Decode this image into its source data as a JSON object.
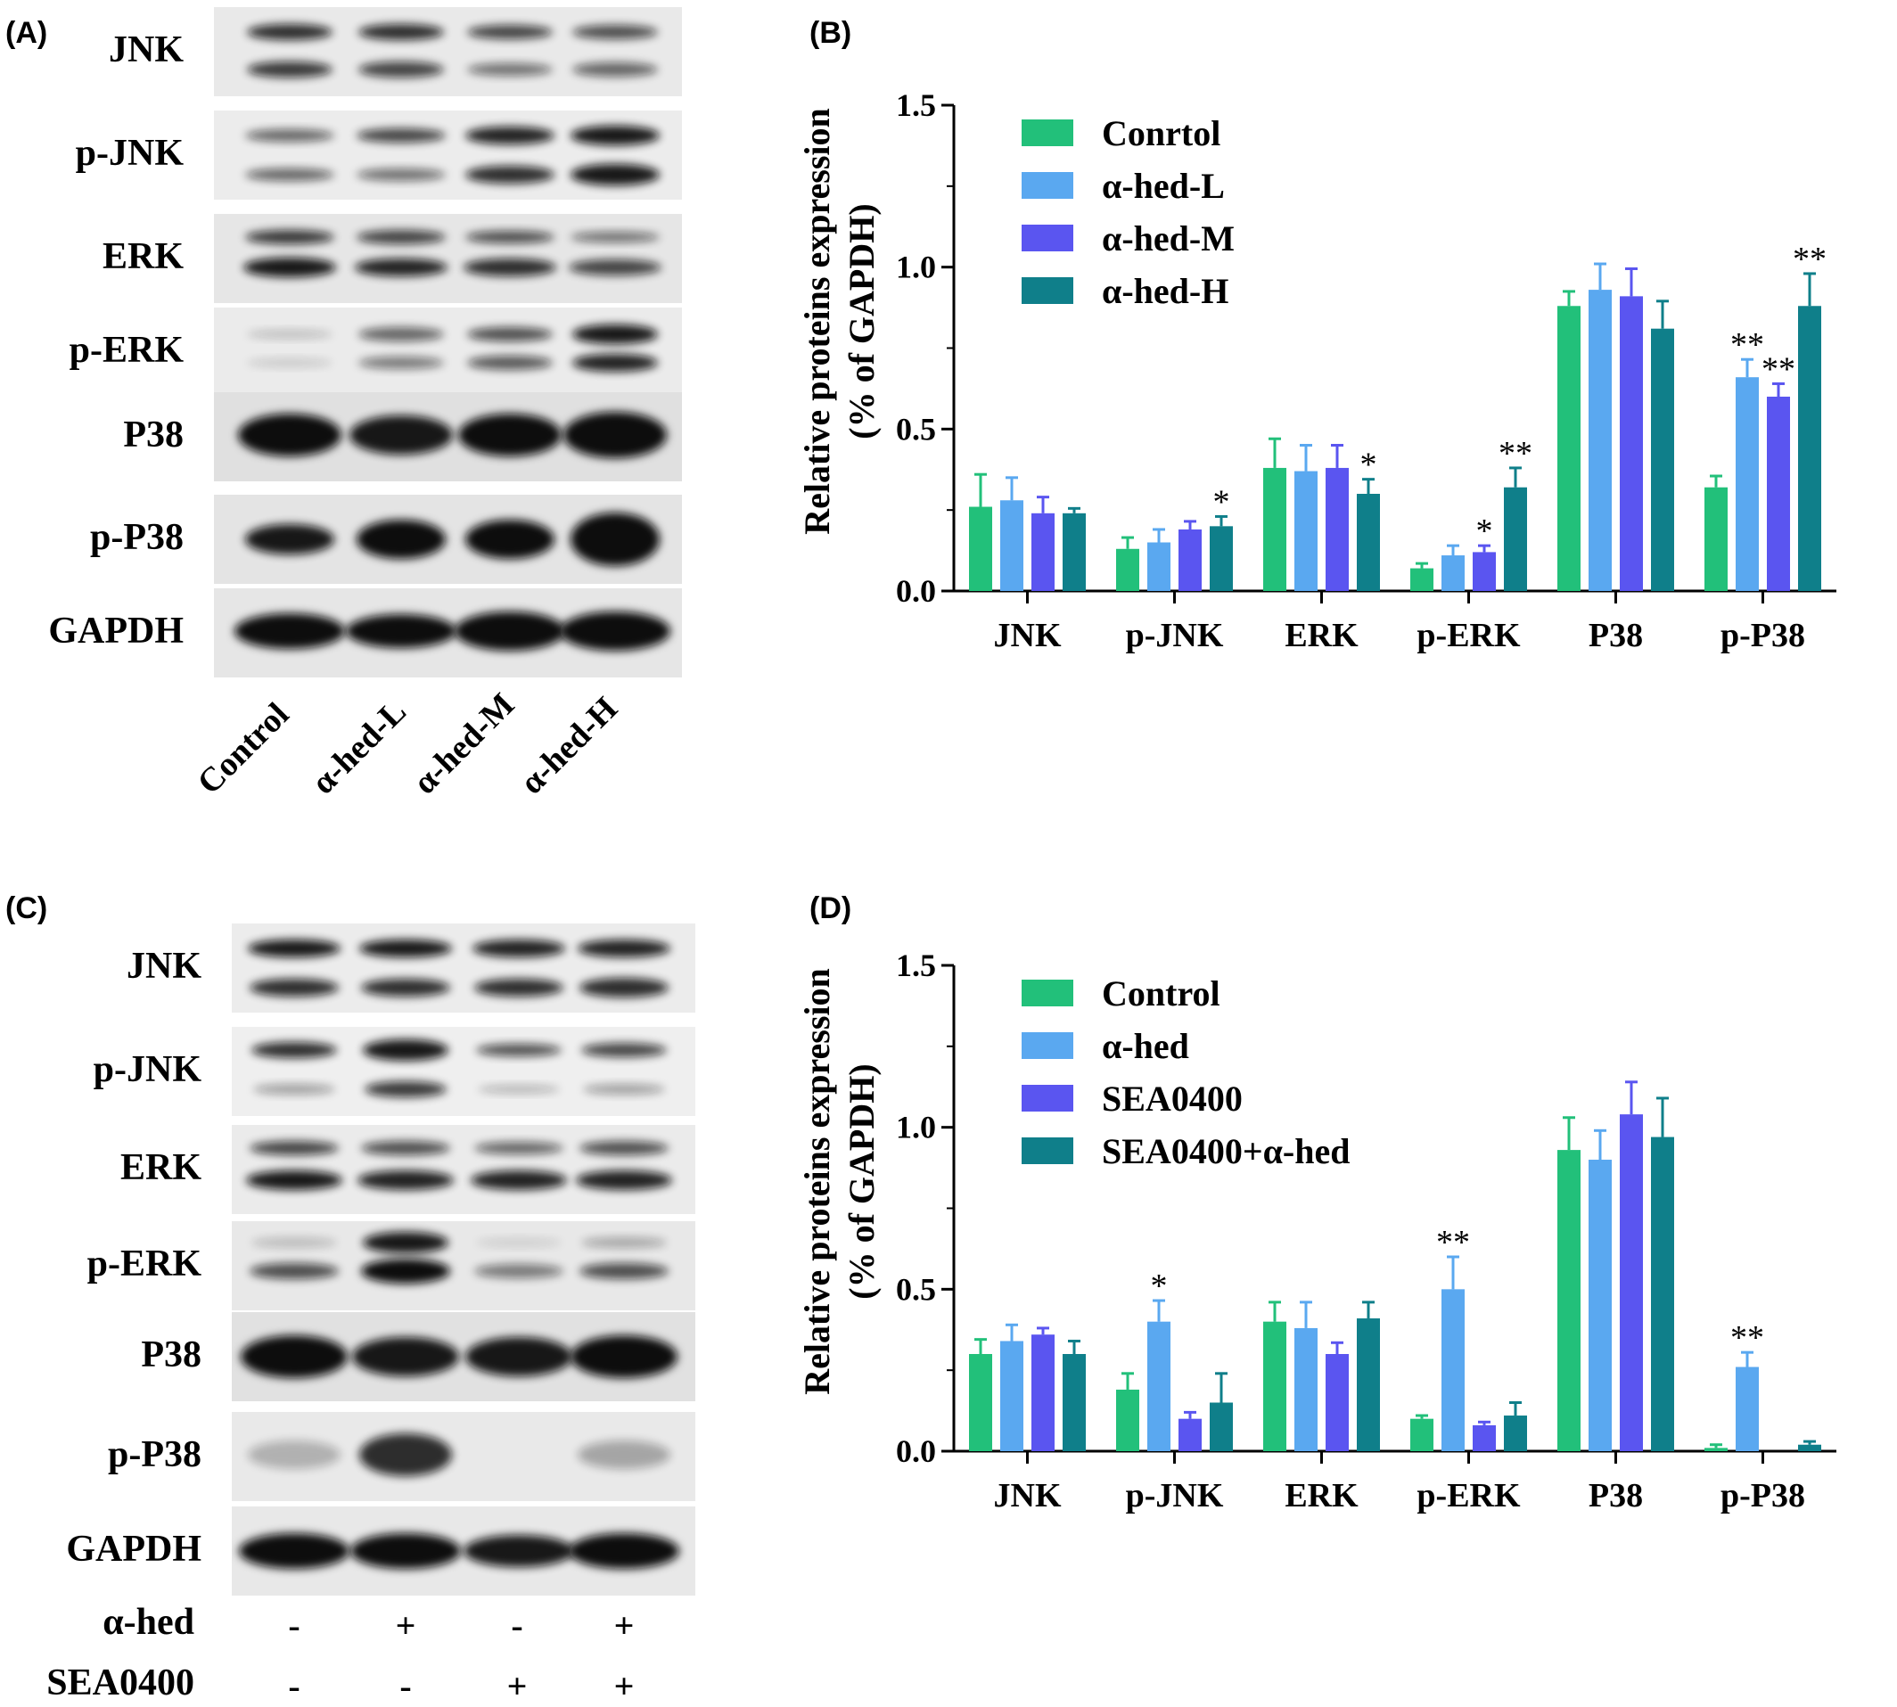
{
  "panels": {
    "A": {
      "label": "(A)",
      "rows": [
        "JNK",
        "p-JNK",
        "ERK",
        "p-ERK",
        "P38",
        "p-P38",
        "GAPDH"
      ],
      "lanes": [
        "Control",
        "α-hed-L",
        "α-hed-M",
        "α-hed-H"
      ]
    },
    "B": {
      "label": "(B)"
    },
    "C": {
      "label": "(C)",
      "rows": [
        "JNK",
        "p-JNK",
        "ERK",
        "p-ERK",
        "P38",
        "p-P38",
        "GAPDH"
      ],
      "treatments": [
        {
          "name": "α-hed",
          "signs": [
            "-",
            "+",
            "-",
            "+"
          ]
        },
        {
          "name": "SEA0400",
          "signs": [
            "-",
            "-",
            "+",
            "+"
          ]
        }
      ]
    },
    "D": {
      "label": "(D)"
    }
  },
  "colors": {
    "s1": "#22c07a",
    "s2": "#5aa8f0",
    "s3": "#5a55f0",
    "s4": "#0f7f8a"
  },
  "chart_data": [
    {
      "type": "bar",
      "panel": "B",
      "categories": [
        "JNK",
        "p-JNK",
        "ERK",
        "p-ERK",
        "P38",
        "p-P38"
      ],
      "ylabel": "Relative proteins expression\n(% of GAPDH)",
      "ylim": [
        0,
        1.5
      ],
      "yticks": [
        "0.0",
        "0.5",
        "1.0",
        "1.5"
      ],
      "legend_position": "top-left",
      "series": [
        {
          "name": "Conrtol",
          "color": "#22c07a",
          "values": [
            0.26,
            0.13,
            0.38,
            0.07,
            0.88,
            0.32
          ],
          "errors": [
            0.1,
            0.035,
            0.09,
            0.015,
            0.045,
            0.035
          ],
          "sig": [
            "",
            "",
            "",
            "",
            "",
            ""
          ]
        },
        {
          "name": "α-hed-L",
          "color": "#5aa8f0",
          "values": [
            0.28,
            0.15,
            0.37,
            0.11,
            0.93,
            0.66
          ],
          "errors": [
            0.07,
            0.04,
            0.08,
            0.03,
            0.08,
            0.055
          ],
          "sig": [
            "",
            "",
            "",
            "",
            "",
            "**"
          ]
        },
        {
          "name": "α-hed-M",
          "color": "#5a55f0",
          "values": [
            0.24,
            0.19,
            0.38,
            0.12,
            0.91,
            0.6
          ],
          "errors": [
            0.05,
            0.025,
            0.07,
            0.02,
            0.085,
            0.04
          ],
          "sig": [
            "",
            "",
            "",
            "*",
            "",
            "**"
          ]
        },
        {
          "name": "α-hed-H",
          "color": "#0f7f8a",
          "values": [
            0.24,
            0.2,
            0.3,
            0.32,
            0.81,
            0.88
          ],
          "errors": [
            0.015,
            0.03,
            0.045,
            0.06,
            0.085,
            0.1
          ],
          "sig": [
            "",
            "*",
            "*",
            "**",
            "",
            "**"
          ]
        }
      ]
    },
    {
      "type": "bar",
      "panel": "D",
      "categories": [
        "JNK",
        "p-JNK",
        "ERK",
        "p-ERK",
        "P38",
        "p-P38"
      ],
      "ylabel": "Relative proteins expression\n(% of GAPDH)",
      "ylim": [
        0,
        1.5
      ],
      "yticks": [
        "0.0",
        "0.5",
        "1.0",
        "1.5"
      ],
      "legend_position": "top-left",
      "series": [
        {
          "name": "Control",
          "color": "#22c07a",
          "values": [
            0.3,
            0.19,
            0.4,
            0.1,
            0.93,
            0.01
          ],
          "errors": [
            0.045,
            0.05,
            0.06,
            0.01,
            0.1,
            0.01
          ],
          "sig": [
            "",
            "",
            "",
            "",
            "",
            ""
          ]
        },
        {
          "name": "α-hed",
          "color": "#5aa8f0",
          "values": [
            0.34,
            0.4,
            0.38,
            0.5,
            0.9,
            0.26
          ],
          "errors": [
            0.05,
            0.065,
            0.08,
            0.1,
            0.09,
            0.045
          ],
          "sig": [
            "",
            "*",
            "",
            "**",
            "",
            "**"
          ]
        },
        {
          "name": "SEA0400",
          "color": "#5a55f0",
          "values": [
            0.36,
            0.1,
            0.3,
            0.08,
            1.04,
            0.0
          ],
          "errors": [
            0.02,
            0.02,
            0.035,
            0.01,
            0.1,
            0.0
          ],
          "sig": [
            "",
            "",
            "",
            "",
            "",
            ""
          ]
        },
        {
          "name": "SEA0400+α-hed",
          "color": "#0f7f8a",
          "values": [
            0.3,
            0.15,
            0.41,
            0.11,
            0.97,
            0.02
          ],
          "errors": [
            0.04,
            0.09,
            0.05,
            0.04,
            0.12,
            0.01
          ],
          "sig": [
            "",
            "",
            "",
            "",
            "",
            ""
          ]
        }
      ]
    }
  ]
}
